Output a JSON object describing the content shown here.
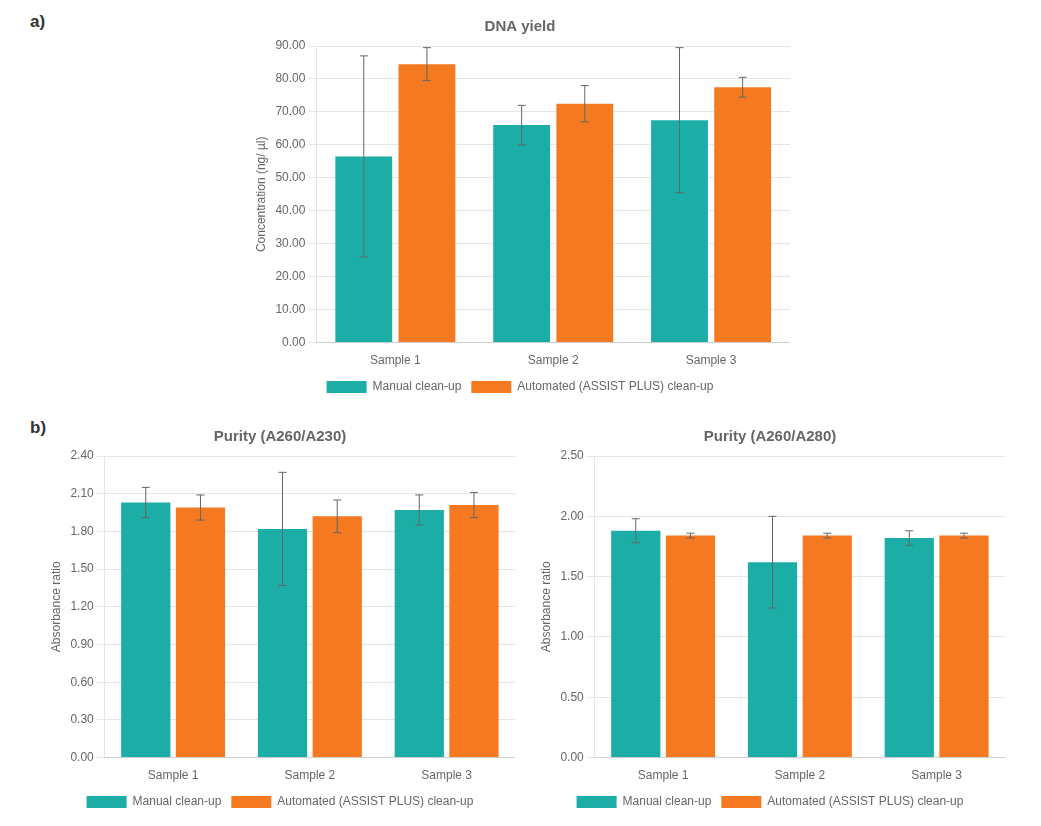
{
  "chart_data": [
    {
      "type": "bar",
      "title": "DNA yield",
      "annotation": "a)",
      "ylabel": "Concentration (ng/ µl)",
      "categories": [
        "Sample 1",
        "Sample 2",
        "Sample 3"
      ],
      "series": [
        {
          "name": "Manual clean-up",
          "color": "#1BADA6",
          "values": [
            56.5,
            66.0,
            67.5
          ],
          "errors": [
            30.5,
            6.0,
            22.0
          ]
        },
        {
          "name": "Automated (ASSIST PLUS) clean-up",
          "color": "#F47920",
          "values": [
            84.5,
            72.5,
            77.5
          ],
          "errors": [
            5.0,
            5.5,
            3.0
          ]
        }
      ],
      "ylim": [
        0,
        90
      ],
      "yticks": [
        {
          "value": 0,
          "label": "0.00"
        },
        {
          "value": 10,
          "label": "10.00"
        },
        {
          "value": 20,
          "label": "20.00"
        },
        {
          "value": 30,
          "label": "30.00"
        },
        {
          "value": 40,
          "label": "40.00"
        },
        {
          "value": 50,
          "label": "50.00"
        },
        {
          "value": 60,
          "label": "60.00"
        },
        {
          "value": 70,
          "label": "70.00"
        },
        {
          "value": 80,
          "label": "80.00"
        },
        {
          "value": 90,
          "label": "90.00"
        }
      ],
      "grid": true,
      "legend": "bottom"
    },
    {
      "type": "bar",
      "title": "Purity (A260/A230)",
      "annotation": "b)",
      "ylabel": "Absorbance ratio",
      "categories": [
        "Sample 1",
        "Sample 2",
        "Sample 3"
      ],
      "series": [
        {
          "name": "Manual clean-up",
          "color": "#1BADA6",
          "values": [
            2.03,
            1.82,
            1.97
          ],
          "errors": [
            0.12,
            0.45,
            0.12
          ]
        },
        {
          "name": "Automated (ASSIST PLUS) clean-up",
          "color": "#F47920",
          "values": [
            1.99,
            1.92,
            2.01
          ],
          "errors": [
            0.1,
            0.13,
            0.1
          ]
        }
      ],
      "ylim": [
        0,
        2.4
      ],
      "yticks": [
        {
          "value": 0,
          "label": "0.00"
        },
        {
          "value": 0.3,
          "label": "0.30"
        },
        {
          "value": 0.6,
          "label": "0.60"
        },
        {
          "value": 0.9,
          "label": "0.90"
        },
        {
          "value": 1.2,
          "label": "1.20"
        },
        {
          "value": 1.5,
          "label": "1.50"
        },
        {
          "value": 1.8,
          "label": "1.80"
        },
        {
          "value": 2.1,
          "label": "2.10"
        },
        {
          "value": 2.4,
          "label": "2.40"
        }
      ],
      "grid": true,
      "legend": "bottom"
    },
    {
      "type": "bar",
      "title": "Purity (A260/A280)",
      "ylabel": "Absorbance ratio",
      "categories": [
        "Sample 1",
        "Sample 2",
        "Sample 3"
      ],
      "series": [
        {
          "name": "Manual clean-up",
          "color": "#1BADA6",
          "values": [
            1.88,
            1.62,
            1.82
          ],
          "errors": [
            0.1,
            0.38,
            0.06
          ]
        },
        {
          "name": "Automated (ASSIST PLUS) clean-up",
          "color": "#F47920",
          "values": [
            1.84,
            1.84,
            1.84
          ],
          "errors": [
            0.02,
            0.02,
            0.02
          ]
        }
      ],
      "ylim": [
        0,
        2.5
      ],
      "yticks": [
        {
          "value": 0,
          "label": "0.00"
        },
        {
          "value": 0.5,
          "label": "0.50"
        },
        {
          "value": 1.0,
          "label": "1.00"
        },
        {
          "value": 1.5,
          "label": "1.50"
        },
        {
          "value": 2.0,
          "label": "2.00"
        },
        {
          "value": 2.5,
          "label": "2.50"
        }
      ],
      "grid": true,
      "legend": "bottom"
    }
  ]
}
